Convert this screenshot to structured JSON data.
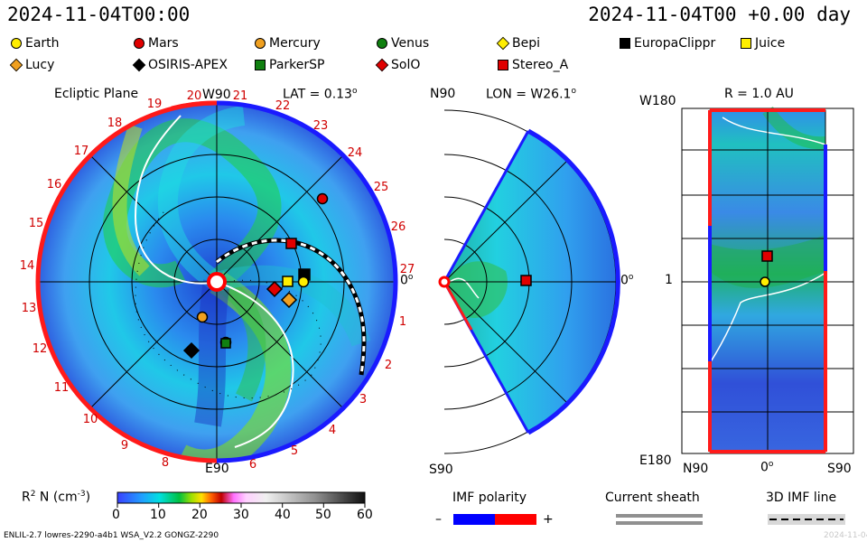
{
  "header": {
    "datetime_left": "2024-11-04T00:00",
    "datetime_right": "2024-11-04T00 +0.00 day"
  },
  "legend_bodies": [
    {
      "name": "Earth",
      "shape": "circle",
      "color": "#ffee00"
    },
    {
      "name": "Mars",
      "shape": "circle",
      "color": "#e00000"
    },
    {
      "name": "Mercury",
      "shape": "circle",
      "color": "#f0a020"
    },
    {
      "name": "Venus",
      "shape": "circle",
      "color": "#108010"
    },
    {
      "name": "Bepi",
      "shape": "diamond",
      "color": "#ffee00"
    },
    {
      "name": "EuropaClippr",
      "shape": "square",
      "color": "#000000"
    },
    {
      "name": "Juice",
      "shape": "square",
      "color": "#ffee00"
    },
    {
      "name": "Lucy",
      "shape": "diamond",
      "color": "#f0a020"
    },
    {
      "name": "OSIRIS-APEX",
      "shape": "diamond",
      "color": "#000000"
    },
    {
      "name": "ParkerSP",
      "shape": "square",
      "color": "#108010"
    },
    {
      "name": "SolO",
      "shape": "diamond",
      "color": "#e00000"
    },
    {
      "name": "Stereo_A",
      "shape": "square",
      "color": "#e00000"
    }
  ],
  "panel_ecliptic": {
    "title": "Ecliptic Plane",
    "lat_label": "LAT = 0.13",
    "top_label": "W90",
    "bottom_label": "E90",
    "right_label": "0",
    "degree_mark": "o",
    "rim_numbers": [
      "1",
      "2",
      "3",
      "4",
      "5",
      "6",
      "8",
      "9",
      "10",
      "11",
      "12",
      "13",
      "14",
      "15",
      "16",
      "17",
      "18",
      "19",
      "20",
      "21",
      "22",
      "23",
      "24",
      "25",
      "26",
      "27"
    ]
  },
  "panel_meridional": {
    "lon_label": "LON = W26.1",
    "degree_mark": "o",
    "top_label": "N90",
    "bottom_label": "S90",
    "right_label": "0"
  },
  "panel_radial": {
    "r_label": "R = 1.0 AU",
    "left_top": "W180",
    "left_mid": "1",
    "left_bottom": "E180",
    "bottom_left": "N90",
    "bottom_mid": "0",
    "bottom_right": "S90",
    "degree_mark": "o"
  },
  "colorbar": {
    "label_prefix": "R",
    "label_sup": "2",
    "label_mid": " N (cm",
    "label_sup2": "-3",
    "label_suffix": ")",
    "ticks": [
      "0",
      "10",
      "20",
      "30",
      "40",
      "50",
      "60"
    ],
    "range": [
      0,
      60
    ]
  },
  "imf_polarity": {
    "title": "IMF polarity",
    "minus": "–",
    "plus": "+",
    "neg_color": "#0000ff",
    "pos_color": "#ff0000"
  },
  "current_sheath": {
    "title": "Current sheath"
  },
  "imf_line": {
    "title": "3D IMF line"
  },
  "footer": {
    "left": "ENLIL-2.7 lowres-2290-a4b1 WSA_V2.2 GONGZ-2290",
    "right": "2024-11-04"
  },
  "chart_data": [
    {
      "type": "heatmap",
      "title": "Ecliptic Plane",
      "quantity": "R2 N (cm-3)",
      "spacecraft": [
        {
          "name": "Earth",
          "r_au": 1.0,
          "lon_deg": 0
        },
        {
          "name": "Mars",
          "r_au": 1.45,
          "lon_deg": 44
        },
        {
          "name": "Mercury",
          "r_au": 0.44,
          "lon_deg": -109
        },
        {
          "name": "Venus",
          "r_au": 0.72,
          "lon_deg": -80
        },
        {
          "name": "Bepi",
          "r_au": 0.9,
          "lon_deg": -12
        },
        {
          "name": "EuropaClippr",
          "r_au": 1.02,
          "lon_deg": 5
        },
        {
          "name": "Juice",
          "r_au": 0.85,
          "lon_deg": 0
        },
        {
          "name": "Lucy",
          "r_au": 0.85,
          "lon_deg": -16
        },
        {
          "name": "OSIRIS-APEX",
          "r_au": 0.95,
          "lon_deg": -117
        },
        {
          "name": "ParkerSP",
          "r_au": 0.75,
          "lon_deg": -78
        },
        {
          "name": "SolO",
          "r_au": 0.68,
          "lon_deg": -8
        },
        {
          "name": "Stereo_A",
          "r_au": 0.97,
          "lon_deg": 26
        }
      ]
    }
  ]
}
